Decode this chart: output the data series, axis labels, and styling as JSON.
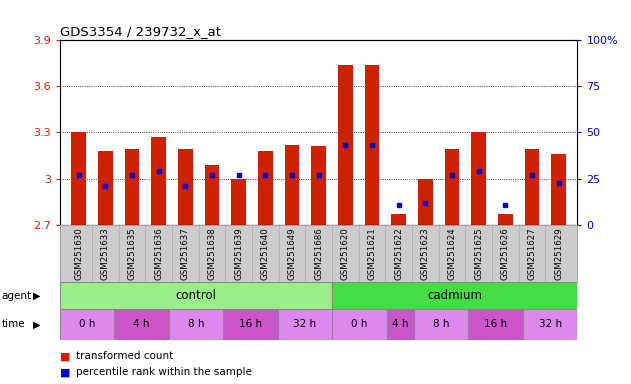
{
  "title": "GDS3354 / 239732_x_at",
  "samples": [
    "GSM251630",
    "GSM251633",
    "GSM251635",
    "GSM251636",
    "GSM251637",
    "GSM251638",
    "GSM251639",
    "GSM251640",
    "GSM251649",
    "GSM251686",
    "GSM251620",
    "GSM251621",
    "GSM251622",
    "GSM251623",
    "GSM251624",
    "GSM251625",
    "GSM251626",
    "GSM251627",
    "GSM251629"
  ],
  "red_values": [
    3.3,
    3.18,
    3.19,
    3.27,
    3.19,
    3.09,
    3.0,
    3.18,
    3.22,
    3.21,
    3.74,
    3.74,
    2.77,
    3.0,
    3.19,
    3.3,
    2.77,
    3.19,
    3.16
  ],
  "blue_values": [
    3.02,
    2.95,
    3.02,
    3.05,
    2.95,
    3.02,
    3.02,
    3.02,
    3.02,
    3.02,
    3.22,
    3.22,
    2.83,
    2.84,
    3.02,
    3.05,
    2.83,
    3.02,
    2.97
  ],
  "ymin": 2.7,
  "ymax": 3.9,
  "yticks": [
    2.7,
    3.0,
    3.3,
    3.6,
    3.9
  ],
  "ytick_labels": [
    "2.7",
    "3",
    "3.3",
    "3.6",
    "3.9"
  ],
  "right_yticks": [
    0,
    25,
    50,
    75,
    100
  ],
  "right_ytick_labels": [
    "0",
    "25",
    "50",
    "75",
    "100%"
  ],
  "bar_color": "#cc2200",
  "dot_color": "#0000cc",
  "agent_control_label": "control",
  "agent_cadmium_label": "cadmium",
  "agent_label": "agent",
  "time_label": "time",
  "time_labels_control": [
    "0 h",
    "4 h",
    "8 h",
    "16 h",
    "32 h"
  ],
  "time_labels_cadmium": [
    "0 h",
    "4 h",
    "8 h",
    "16 h",
    "32 h"
  ],
  "control_color": "#99ee88",
  "cadmium_color": "#44dd44",
  "time_color_alt": "#dd88ee",
  "time_color_main": "#cc55cc",
  "legend_red": "transformed count",
  "legend_blue": "percentile rank within the sample",
  "bg_color": "#ffffff",
  "tick_label_color_left": "#cc2200",
  "tick_label_color_right": "#0000cc",
  "n_control": 10,
  "n_cadmium": 9,
  "ctrl_time_counts": [
    2,
    2,
    2,
    2,
    2
  ],
  "cad_time_counts": [
    2,
    1,
    2,
    2,
    2
  ]
}
